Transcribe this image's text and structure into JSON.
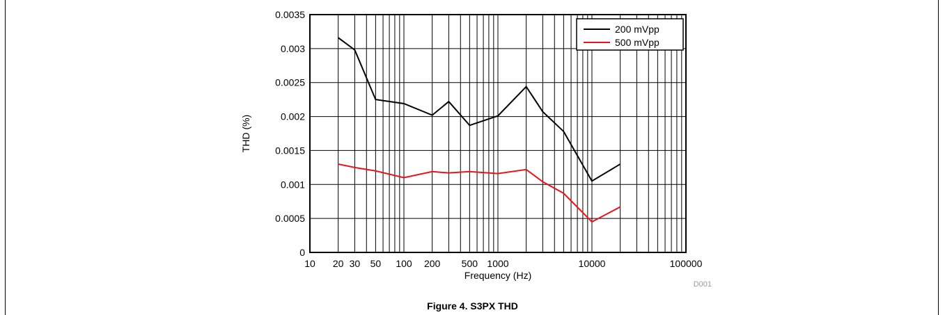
{
  "figure_caption": "Figure 4. S3PX THD",
  "chart_id": "D001",
  "colors": {
    "series_200": "#000000",
    "series_500": "#e8141b",
    "grid": "#000000"
  },
  "chart_data": {
    "type": "line",
    "xlabel": "Frequency (Hz)",
    "ylabel": "THD (%)",
    "xscale": "log",
    "xlim": [
      10,
      100000
    ],
    "ylim": [
      0,
      0.0035
    ],
    "grid": true,
    "legend_position": "top-right",
    "x_ticks": [
      {
        "value": 10,
        "label": "10"
      },
      {
        "value": 20,
        "label": "20"
      },
      {
        "value": 30,
        "label": "30"
      },
      {
        "value": 50,
        "label": "50"
      },
      {
        "value": 100,
        "label": "100"
      },
      {
        "value": 200,
        "label": "200"
      },
      {
        "value": 500,
        "label": "500"
      },
      {
        "value": 1000,
        "label": "1000"
      },
      {
        "value": 10000,
        "label": "10000"
      },
      {
        "value": 100000,
        "label": "100000"
      }
    ],
    "y_ticks": [
      {
        "value": 0,
        "label": "0"
      },
      {
        "value": 0.0005,
        "label": "0.0005"
      },
      {
        "value": 0.001,
        "label": "0.001"
      },
      {
        "value": 0.0015,
        "label": "0.0015"
      },
      {
        "value": 0.002,
        "label": "0.002"
      },
      {
        "value": 0.0025,
        "label": "0.0025"
      },
      {
        "value": 0.003,
        "label": "0.003"
      },
      {
        "value": 0.0035,
        "label": "0.0035"
      }
    ],
    "x": [
      20,
      30,
      50,
      100,
      200,
      300,
      500,
      1000,
      2000,
      3000,
      5000,
      10000,
      20000
    ],
    "series": [
      {
        "name": "200 mVpp",
        "color": "#000000",
        "values": [
          0.00316,
          0.00298,
          0.00225,
          0.00219,
          0.00202,
          0.00222,
          0.00187,
          0.00201,
          0.00244,
          0.00207,
          0.00178,
          0.00105,
          0.0013
        ]
      },
      {
        "name": "500 mVpp",
        "color": "#e8141b",
        "values": [
          0.0013,
          0.00125,
          0.0012,
          0.0011,
          0.00119,
          0.00117,
          0.00119,
          0.00116,
          0.00122,
          0.00104,
          0.00087,
          0.00045,
          0.00067
        ]
      }
    ]
  }
}
